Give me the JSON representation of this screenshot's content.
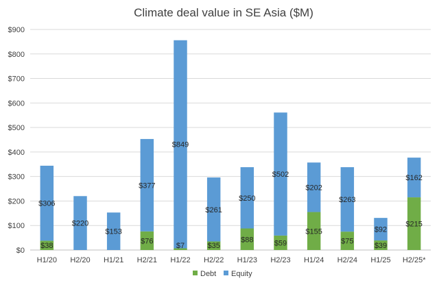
{
  "chart_data": {
    "type": "bar",
    "stacked": true,
    "title": "Climate deal value in SE Asia ($M)",
    "categories": [
      "H1/20",
      "H2/20",
      "H1/21",
      "H2/21",
      "H1/22",
      "H2/22",
      "H1/23",
      "H2/23",
      "H1/24",
      "H2/24",
      "H1/25",
      "H2/25*"
    ],
    "series": [
      {
        "name": "Debt",
        "color": "#70ad47",
        "values": [
          38,
          null,
          null,
          76,
          7,
          35,
          88,
          59,
          155,
          75,
          39,
          215
        ]
      },
      {
        "name": "Equity",
        "color": "#5b9bd5",
        "values": [
          306,
          220,
          153,
          377,
          849,
          261,
          250,
          502,
          202,
          263,
          92,
          162
        ]
      }
    ],
    "data_labels": {
      "Debt": [
        "$38",
        null,
        null,
        "$76",
        "$7",
        "$35",
        "$88",
        "$59",
        "$155",
        "$75",
        "$39",
        "$215"
      ],
      "Equity": [
        "$306",
        "$220",
        "$153",
        "$377",
        "$849",
        "$261",
        "$250",
        "$502",
        "$202",
        "$263",
        "$92",
        "$162"
      ]
    },
    "yticks": [
      "$0",
      "$100",
      "$200",
      "$300",
      "$400",
      "$500",
      "$600",
      "$700",
      "$800",
      "$900"
    ],
    "ylim": [
      0,
      900
    ],
    "grid": true,
    "legend_position": "bottom",
    "legend": [
      "Debt",
      "Equity"
    ]
  }
}
